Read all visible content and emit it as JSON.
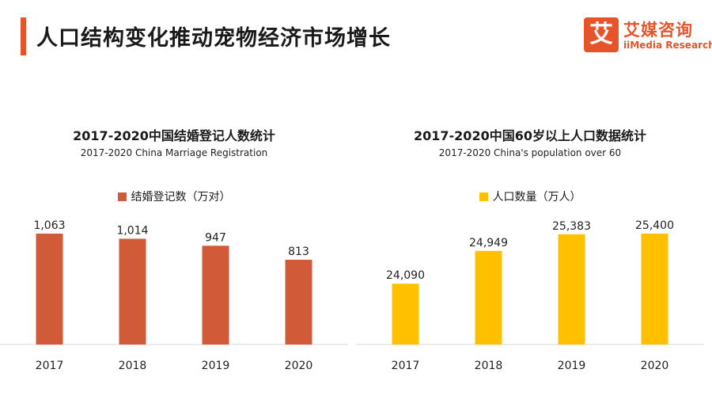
{
  "header": {
    "title": "人口结构变化推动宠物经济市场增长",
    "accent_color": "#E8542A"
  },
  "logo": {
    "mark": "艾",
    "name_cn": "艾媒咨询",
    "name_en": "iiMedia Research",
    "color": "#E8542A"
  },
  "chart_data": [
    {
      "type": "bar",
      "title": "2017-2020中国结婚登记人数统计",
      "subtitle": "2017-2020 China Marriage Registration",
      "categories": [
        "2017",
        "2018",
        "2019",
        "2020"
      ],
      "series": [
        {
          "name": "结婚登记数（万对）",
          "values": [
            1063,
            1014,
            947,
            813
          ],
          "value_labels": [
            "1,063",
            "1,014",
            "947",
            "813"
          ],
          "color": "#D15A38"
        }
      ],
      "ylim": [
        0,
        1063
      ],
      "grid": false,
      "legend_position": "top"
    },
    {
      "type": "bar",
      "title": "2017-2020中国60岁以上人口数据统计",
      "subtitle": "2017-2020 China's population over 60",
      "categories": [
        "2017",
        "2018",
        "2019",
        "2020"
      ],
      "series": [
        {
          "name": "人口数量（万人）",
          "values": [
            24090,
            24949,
            25383,
            25400
          ],
          "value_labels": [
            "24,090",
            "24,949",
            "25,383",
            "25,400"
          ],
          "color": "#FFC000"
        }
      ],
      "ylim": [
        22500,
        25400
      ],
      "grid": false,
      "legend_position": "top"
    }
  ]
}
